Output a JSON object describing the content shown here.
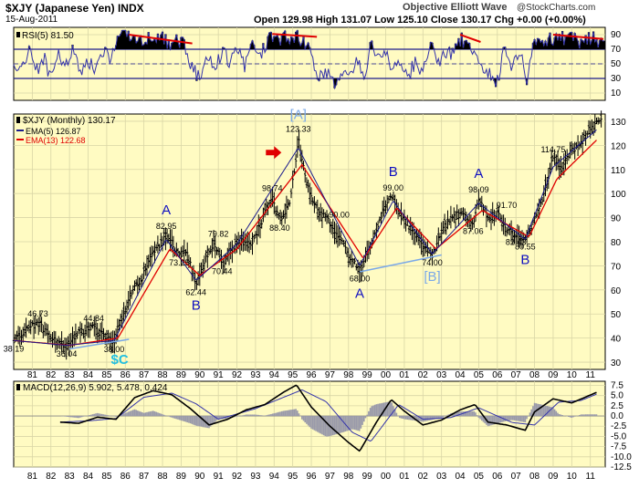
{
  "header": {
    "symbol_label": "$XJY (Japanese Yen) INDX",
    "date": "15-Aug-2011",
    "chart_name": "Objective Elliott Wave",
    "copyright": "@StockCharts.com",
    "ohlc": "Open 129.98  High 131.07  Low 125.10  Close 130.17  Chg +0.00 (+0.00%)"
  },
  "colors": {
    "panel_bg": "#fffbc2",
    "grid": "#d9d6a6",
    "price": "#000000",
    "ema5": "#1a1a8c",
    "ema13": "#e00000",
    "rsi_line": "#3333aa",
    "wave_label": "#1010c0",
    "bracket_label": "#7aa8e8",
    "sc_label": "#22bfe0",
    "trend_line": "#7aa8e8",
    "divergence_line": "#e00000",
    "arrow": "#e00000",
    "hist": "#9a9aaa"
  },
  "chart_data": [
    {
      "type": "line",
      "title": "RSI(5) 81.50",
      "ylim": [
        0,
        100
      ],
      "ticks": [
        "10",
        "30",
        "50",
        "70",
        "90"
      ],
      "reference_levels": [
        70,
        50,
        30
      ],
      "series": [
        {
          "name": "RSI(5)",
          "x": [
            1980,
            1980.4,
            1980.8,
            1981.2,
            1981.6,
            1982,
            1982.4,
            1982.8,
            1983.2,
            1983.6,
            1984,
            1984.4,
            1984.8,
            1985.2,
            1985.6,
            1986,
            1986.4,
            1986.8,
            1987.2,
            1987.6,
            1988,
            1988.4,
            1988.8,
            1989.2,
            1989.6,
            1990,
            1990.4,
            1990.8,
            1991.2,
            1991.6,
            1992,
            1992.4,
            1992.8,
            1993.2,
            1993.6,
            1994,
            1994.4,
            1994.8,
            1995.2,
            1995.6,
            1996,
            1996.4,
            1996.8,
            1997.2,
            1997.6,
            1998,
            1998.4,
            1998.8,
            1999.2,
            1999.6,
            2000,
            2000.4,
            2000.8,
            2001.2,
            2001.6,
            2002,
            2002.4,
            2002.8,
            2003.2,
            2003.6,
            2004,
            2004.4,
            2004.8,
            2005.2,
            2005.6,
            2006,
            2006.4,
            2006.8,
            2007.2,
            2007.6,
            2008,
            2008.4,
            2008.8,
            2009.2,
            2009.6,
            2010,
            2010.4,
            2010.8,
            2011.2,
            2011.6
          ],
          "values": [
            55,
            35,
            72,
            40,
            60,
            30,
            65,
            45,
            70,
            30,
            55,
            40,
            72,
            50,
            88,
            86,
            84,
            80,
            87,
            82,
            84,
            78,
            80,
            74,
            45,
            30,
            60,
            38,
            68,
            52,
            70,
            45,
            74,
            55,
            80,
            88,
            85,
            87,
            86,
            84,
            60,
            28,
            42,
            22,
            38,
            25,
            62,
            32,
            75,
            55,
            72,
            40,
            60,
            30,
            55,
            35,
            74,
            52,
            70,
            62,
            84,
            78,
            68,
            42,
            36,
            26,
            72,
            44,
            70,
            20,
            88,
            84,
            86,
            82,
            86,
            84,
            80,
            86,
            84,
            81.5
          ]
        }
      ],
      "annotations": [
        "RSI(5) 81.50"
      ]
    },
    {
      "type": "line",
      "title": "$XJY (Monthly) 130.17",
      "ylim": [
        27,
        133
      ],
      "xlim": [
        1980,
        2011.8
      ],
      "x_ticks": [
        "81",
        "82",
        "83",
        "84",
        "85",
        "86",
        "87",
        "88",
        "89",
        "90",
        "91",
        "92",
        "93",
        "94",
        "95",
        "96",
        "97",
        "98",
        "99",
        "00",
        "01",
        "02",
        "03",
        "04",
        "05",
        "06",
        "07",
        "08",
        "09",
        "10",
        "11"
      ],
      "y_ticks": [
        "30",
        "40",
        "50",
        "60",
        "70",
        "80",
        "90",
        "100",
        "110",
        "120",
        "130"
      ],
      "legend": [
        "$XJY (Monthly) 130.17",
        "EMA(5) 126.87",
        "EMA(13) 122.68"
      ],
      "series": [
        {
          "name": "$XJY (Monthly)",
          "x": [
            1980,
            1980.75,
            1981.3,
            1982,
            1982.85,
            1983.5,
            1984.3,
            1984.9,
            1985.4,
            1985.8,
            1986.4,
            1986.9,
            1987.3,
            1987.8,
            1988.2,
            1988.5,
            1988.9,
            1989.2,
            1989.8,
            1990.3,
            1990.8,
            1991.2,
            1991.7,
            1992.2,
            1992.8,
            1993.4,
            1993.9,
            1994.3,
            1994.9,
            1995.3,
            1995.7,
            1996.3,
            1996.8,
            1997.3,
            1997.9,
            1998.6,
            1999.3,
            1999.9,
            2000.4,
            2000.9,
            2001.5,
            2002.0,
            2002.5,
            2003.0,
            2003.6,
            2004.1,
            2004.7,
            2005.0,
            2005.5,
            2006.0,
            2006.5,
            2007.0,
            2007.5,
            2008.0,
            2008.5,
            2009.0,
            2009.5,
            2010.0,
            2010.5,
            2011.0,
            2011.4
          ],
          "values": [
            38.19,
            44,
            46.73,
            40,
            36.04,
            42,
            44.84,
            40,
            38.0,
            47,
            60,
            65,
            73,
            78,
            82.95,
            79,
            73.25,
            78,
            62.44,
            72,
            79.82,
            70.44,
            76,
            80,
            78,
            90,
            98.74,
            88.4,
            98,
            123.33,
            105,
            93,
            90,
            84,
            76,
            68.0,
            80,
            95,
            99.0,
            90,
            84,
            78,
            74.0,
            85,
            90,
            92,
            87.06,
            98.09,
            90,
            91.7,
            85,
            82.43,
            80.55,
            90,
            100,
            114.75,
            110,
            118,
            121,
            127,
            130.17
          ]
        },
        {
          "name": "EMA(5)",
          "x": [
            1980,
            1982.85,
            1985.4,
            1988.2,
            1989.8,
            1992,
            1995.3,
            1998.6,
            2000.4,
            2002.5,
            2005.0,
            2007.5,
            2009.0,
            2011.4
          ],
          "values": [
            39,
            37,
            39,
            81,
            64,
            79,
            119,
            70,
            97,
            75,
            96,
            81,
            111,
            126.87
          ]
        },
        {
          "name": "EMA(13)",
          "x": [
            1980,
            1983,
            1985.6,
            1988.4,
            1990.0,
            1992,
            1995.5,
            1998.8,
            2000.6,
            2002.7,
            2005.2,
            2007.7,
            2009.2,
            2011.4
          ],
          "values": [
            39,
            37,
            40,
            77,
            66,
            77,
            112,
            73,
            94,
            77,
            93,
            82,
            106,
            122.68
          ]
        }
      ],
      "annotations": [
        "38.19",
        "46.73",
        "44.84",
        "36.04",
        "38.00",
        "$C",
        "A",
        "82.95",
        "73.25",
        "62.44",
        "B",
        "79.82",
        "70.44",
        "98.74",
        "88.40",
        "[A]",
        "123.33",
        "90.00",
        "68.00",
        "A",
        "B",
        "99.00",
        "74.00",
        "[B]",
        "A",
        "98.09",
        "87.06",
        "91.70",
        "82.43",
        "80.55",
        "B",
        "114.75"
      ]
    },
    {
      "type": "line",
      "title": "MACD(12,26,9) 5.902, 5.478, 0.424",
      "ylim": [
        -12.5,
        8.5
      ],
      "ticks": [
        "7.5",
        "5.0",
        "2.5",
        "0.0",
        "-2.5",
        "-5.0",
        "-7.5",
        "-10.0",
        "-12.5"
      ],
      "series": [
        {
          "name": "MACD",
          "x": [
            1982.5,
            1983.5,
            1984.5,
            1985.5,
            1986.5,
            1987.5,
            1988.5,
            1989.5,
            1990.5,
            1991.5,
            1992.5,
            1993.5,
            1994.5,
            1995.2,
            1996,
            1997,
            1998,
            1998.6,
            1999.5,
            2000.3,
            2001,
            2002,
            2003,
            2004,
            2004.8,
            2005.5,
            2006.5,
            2007.5,
            2008,
            2009,
            2010,
            2011.4
          ],
          "values": [
            -1.5,
            -1.8,
            -0.3,
            -0.8,
            4.5,
            6.2,
            5.2,
            1.8,
            -2.2,
            -0.8,
            1.5,
            2.8,
            5.8,
            7.6,
            2.2,
            -2.5,
            -6.5,
            -8.6,
            -1.5,
            4.0,
            1.2,
            -2.2,
            -1.0,
            1.5,
            2.8,
            -1.5,
            -2.2,
            -3.5,
            1.0,
            4.2,
            3.2,
            5.902
          ]
        },
        {
          "name": "Signal",
          "x": [
            1982.5,
            1984,
            1985.5,
            1987,
            1988.5,
            1989.8,
            1991,
            1993,
            1995.5,
            1996.8,
            1998.2,
            1999.2,
            2000.7,
            2002,
            2003.5,
            2005,
            2006.8,
            2008,
            2009.3,
            2010.5,
            2011.4
          ],
          "values": [
            -1.5,
            -1.2,
            -0.6,
            4.6,
            5.6,
            3.0,
            -0.8,
            1.8,
            6.4,
            3.5,
            -4.0,
            -6.2,
            2.8,
            -0.8,
            -0.4,
            2.0,
            -1.6,
            -2.2,
            3.4,
            3.8,
            5.478
          ]
        }
      ],
      "annotations": [
        "MACD(12,26,9) 5.902, 5.478, 0.424"
      ]
    }
  ]
}
